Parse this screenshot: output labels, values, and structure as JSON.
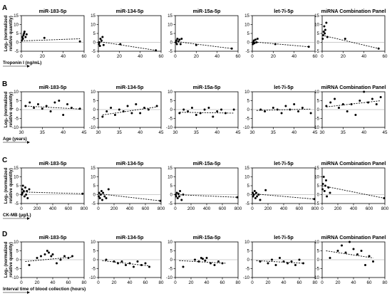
{
  "figure": {
    "y_axis_label_line1": "Log₂ (normalized",
    "y_axis_label_line2": "relative quantity)"
  },
  "panels": [
    {
      "letter": "A",
      "x_axis_label": "Troponin I (ng/mL)"
    },
    {
      "letter": "B",
      "x_axis_label": "Age (years)"
    },
    {
      "letter": "C",
      "x_axis_label": "CK-MB (μg/L)"
    },
    {
      "letter": "D",
      "x_axis_label": "Interval time of blood collection (hours)"
    }
  ],
  "chart_data": [
    {
      "panel": "A",
      "type": "scatter",
      "title": "miR-183-5p",
      "xlim": [
        0,
        60
      ],
      "ylim": [
        -5,
        15
      ],
      "xticks": [
        0,
        20,
        40,
        60
      ],
      "yticks": [
        -5,
        0,
        5,
        10,
        15
      ],
      "x": [
        0.5,
        1,
        1.5,
        2,
        2.5,
        3,
        4,
        5,
        22,
        56
      ],
      "y": [
        1,
        3,
        2,
        4,
        5,
        6,
        3,
        4.5,
        2.5,
        0.5
      ],
      "trend": [
        [
          0,
          0.8
        ],
        [
          56,
          2
        ]
      ]
    },
    {
      "panel": "A",
      "type": "scatter",
      "title": "miR-134-5p",
      "xlim": [
        0,
        60
      ],
      "ylim": [
        -5,
        15
      ],
      "xticks": [
        0,
        20,
        40,
        60
      ],
      "yticks": [
        -5,
        0,
        5,
        10,
        15
      ],
      "x": [
        0.5,
        1,
        1.5,
        2,
        3,
        4,
        5,
        21,
        55
      ],
      "y": [
        -1,
        0,
        -2,
        2,
        1,
        3,
        -1.5,
        -1,
        -4.5
      ],
      "trend": [
        [
          0,
          0.5
        ],
        [
          55,
          -4.5
        ]
      ]
    },
    {
      "panel": "A",
      "type": "scatter",
      "title": "miR-15a-5p",
      "xlim": [
        0,
        60
      ],
      "ylim": [
        -5,
        15
      ],
      "xticks": [
        0,
        20,
        40,
        60
      ],
      "yticks": [
        -5,
        0,
        5,
        10,
        15
      ],
      "x": [
        0.5,
        1,
        1.5,
        2,
        3,
        4,
        5,
        6,
        20,
        54
      ],
      "y": [
        0,
        1,
        -1,
        2,
        0.5,
        1.5,
        -1,
        2,
        -1.5,
        -3.5
      ],
      "trend": [
        [
          0,
          0.5
        ],
        [
          54,
          -3.5
        ]
      ]
    },
    {
      "panel": "A",
      "type": "scatter",
      "title": "let-7i-5p",
      "xlim": [
        0,
        60
      ],
      "ylim": [
        -5,
        15
      ],
      "xticks": [
        0,
        20,
        40,
        60
      ],
      "yticks": [
        -5,
        0,
        5,
        10,
        15
      ],
      "x": [
        0.5,
        1,
        1.5,
        2,
        3,
        4,
        5,
        22,
        54
      ],
      "y": [
        -1,
        0,
        1,
        -0.5,
        1.5,
        0,
        2,
        -1,
        -2.5
      ],
      "trend": [
        [
          0,
          0.3
        ],
        [
          54,
          -2.5
        ]
      ]
    },
    {
      "panel": "A",
      "type": "scatter",
      "title": "miRNA Combination Panel",
      "xlim": [
        0,
        60
      ],
      "ylim": [
        -5,
        15
      ],
      "xticks": [
        0,
        20,
        40,
        60
      ],
      "yticks": [
        -5,
        0,
        5,
        10,
        15
      ],
      "x": [
        0.5,
        1,
        1.5,
        2,
        2.5,
        3,
        4,
        5,
        22,
        54
      ],
      "y": [
        2,
        4,
        6,
        9,
        5,
        7,
        11,
        3,
        2,
        -3.5
      ],
      "trend": [
        [
          0,
          4
        ],
        [
          54,
          -3.5
        ]
      ]
    },
    {
      "panel": "B",
      "type": "scatter",
      "title": "miR-183-5p",
      "xlim": [
        30,
        45
      ],
      "ylim": [
        -10,
        10
      ],
      "xticks": [
        30,
        35,
        40,
        45
      ],
      "yticks": [
        -10,
        -5,
        0,
        5,
        10
      ],
      "x": [
        31,
        32,
        33,
        34,
        35,
        36,
        37,
        38,
        39,
        40,
        41,
        42,
        44
      ],
      "y": [
        2,
        4,
        1,
        3,
        0.5,
        2,
        -1,
        4,
        5,
        -3,
        3,
        1,
        0.5
      ],
      "trend": [
        [
          31,
          2
        ],
        [
          44,
          0.3
        ]
      ]
    },
    {
      "panel": "B",
      "type": "scatter",
      "title": "miR-134-5p",
      "xlim": [
        30,
        45
      ],
      "ylim": [
        -10,
        10
      ],
      "xticks": [
        30,
        35,
        40,
        45
      ],
      "yticks": [
        -10,
        -5,
        0,
        5,
        10
      ],
      "x": [
        31,
        32,
        33,
        34,
        35,
        36,
        37,
        38,
        39,
        40,
        41,
        42,
        44
      ],
      "y": [
        -4,
        -1,
        1,
        -3,
        0,
        -1,
        2,
        -2,
        3,
        -2,
        1,
        0,
        2
      ],
      "trend": [
        [
          31,
          -3
        ],
        [
          44,
          1.5
        ]
      ]
    },
    {
      "panel": "B",
      "type": "scatter",
      "title": "miR-15a-5p",
      "xlim": [
        30,
        45
      ],
      "ylim": [
        -10,
        10
      ],
      "xticks": [
        30,
        35,
        40,
        45
      ],
      "yticks": [
        -10,
        -5,
        0,
        5,
        10
      ],
      "x": [
        31,
        32,
        33,
        34,
        35,
        36,
        37,
        38,
        39,
        40,
        41,
        42,
        44
      ],
      "y": [
        -2,
        0,
        -1,
        1,
        -3,
        -2,
        0,
        1,
        -4,
        -1,
        0,
        -2,
        0
      ],
      "trend": [
        [
          31,
          -1.5
        ],
        [
          44,
          -2
        ]
      ]
    },
    {
      "panel": "B",
      "type": "scatter",
      "title": "let-7i-5p",
      "xlim": [
        30,
        45
      ],
      "ylim": [
        -10,
        10
      ],
      "xticks": [
        30,
        35,
        40,
        45
      ],
      "yticks": [
        -10,
        -5,
        0,
        5,
        10
      ],
      "x": [
        32,
        33,
        35,
        36,
        37,
        38,
        39,
        40,
        41,
        42,
        44
      ],
      "y": [
        0,
        -1,
        1,
        0,
        -2,
        2,
        0,
        3,
        -1,
        1,
        -2
      ],
      "trend": [
        [
          31,
          -0.5
        ],
        [
          44,
          0.3
        ]
      ]
    },
    {
      "panel": "B",
      "type": "scatter",
      "title": "miRNA Combination Panel",
      "xlim": [
        30,
        45
      ],
      "ylim": [
        -10,
        10
      ],
      "xticks": [
        30,
        35,
        40,
        45
      ],
      "yticks": [
        -10,
        -5,
        0,
        5,
        10
      ],
      "x": [
        31,
        32,
        33,
        34,
        35,
        36,
        37,
        38,
        39,
        40,
        41,
        42,
        43,
        44
      ],
      "y": [
        2,
        4,
        6,
        1,
        3,
        -1,
        3,
        -3,
        5,
        10,
        4,
        6,
        3,
        7
      ],
      "trend": [
        [
          31,
          1.5
        ],
        [
          44,
          5
        ]
      ]
    },
    {
      "panel": "C",
      "type": "scatter",
      "title": "miR-183-5p",
      "xlim": [
        0,
        800
      ],
      "ylim": [
        -5,
        15
      ],
      "xticks": [
        0,
        200,
        400,
        600,
        800
      ],
      "yticks": [
        -5,
        0,
        5,
        10,
        15
      ],
      "x": [
        5,
        10,
        15,
        20,
        30,
        40,
        50,
        60,
        70,
        80,
        100,
        780
      ],
      "y": [
        0,
        3,
        1,
        5,
        2,
        -1,
        4,
        0,
        2,
        -2,
        3,
        0.5
      ],
      "trend": [
        [
          0,
          1.5
        ],
        [
          780,
          0.5
        ]
      ]
    },
    {
      "panel": "C",
      "type": "scatter",
      "title": "miR-134-5p",
      "xlim": [
        0,
        800
      ],
      "ylim": [
        -5,
        15
      ],
      "xticks": [
        0,
        200,
        400,
        600,
        800
      ],
      "yticks": [
        -5,
        0,
        5,
        10,
        15
      ],
      "x": [
        5,
        10,
        20,
        30,
        40,
        50,
        60,
        80,
        100,
        130,
        790
      ],
      "y": [
        -1,
        1,
        -2,
        0,
        2,
        -3,
        1,
        -1,
        -2,
        3,
        -3.5
      ],
      "trend": [
        [
          0,
          0.5
        ],
        [
          790,
          -3.5
        ]
      ]
    },
    {
      "panel": "C",
      "type": "scatter",
      "title": "miR-15a-5p",
      "xlim": [
        0,
        800
      ],
      "ylim": [
        -5,
        15
      ],
      "xticks": [
        0,
        200,
        400,
        600,
        800
      ],
      "yticks": [
        -5,
        0,
        5,
        10,
        15
      ],
      "x": [
        5,
        10,
        20,
        30,
        40,
        50,
        60,
        80,
        100,
        790
      ],
      "y": [
        0,
        -1,
        1,
        -2,
        0.5,
        -1,
        2,
        -3,
        0,
        -1.5
      ],
      "trend": [
        [
          0,
          0
        ],
        [
          790,
          -1.5
        ]
      ]
    },
    {
      "panel": "C",
      "type": "scatter",
      "title": "let-7i-5p",
      "xlim": [
        0,
        800
      ],
      "ylim": [
        -5,
        15
      ],
      "xticks": [
        0,
        200,
        400,
        600,
        800
      ],
      "yticks": [
        -5,
        0,
        5,
        10,
        15
      ],
      "x": [
        5,
        10,
        20,
        30,
        40,
        50,
        60,
        80,
        100,
        170,
        790
      ],
      "y": [
        1,
        -1,
        0,
        2,
        -2,
        1,
        -1,
        0,
        -3,
        2.5,
        -2.5
      ],
      "trend": [
        [
          0,
          0.5
        ],
        [
          790,
          -2.5
        ]
      ]
    },
    {
      "panel": "C",
      "type": "scatter",
      "title": "miRNA Combination Panel",
      "xlim": [
        0,
        800
      ],
      "ylim": [
        -5,
        15
      ],
      "xticks": [
        0,
        200,
        400,
        600,
        800
      ],
      "yticks": [
        -5,
        0,
        5,
        10,
        15
      ],
      "x": [
        5,
        10,
        20,
        30,
        40,
        50,
        60,
        80,
        100,
        790
      ],
      "y": [
        3,
        6,
        10,
        2,
        5,
        8,
        -1,
        4,
        1,
        -2
      ],
      "trend": [
        [
          0,
          5
        ],
        [
          790,
          -2
        ]
      ]
    },
    {
      "panel": "D",
      "type": "scatter",
      "title": "miR-183-5p",
      "xlim": [
        0,
        80
      ],
      "ylim": [
        -10,
        10
      ],
      "xticks": [
        0,
        20,
        40,
        60,
        80
      ],
      "yticks": [
        -10,
        -5,
        0,
        5,
        10
      ],
      "x": [
        10,
        20,
        25,
        30,
        33,
        35,
        38,
        40,
        45,
        50,
        55,
        60,
        65
      ],
      "y": [
        -3,
        1,
        2,
        3,
        5,
        4,
        2,
        3,
        -2,
        0,
        2,
        1,
        2
      ],
      "trend": [
        [
          5,
          -1
        ],
        [
          65,
          1.5
        ]
      ]
    },
    {
      "panel": "D",
      "type": "scatter",
      "title": "miR-134-5p",
      "xlim": [
        0,
        80
      ],
      "ylim": [
        -10,
        10
      ],
      "xticks": [
        0,
        20,
        40,
        60,
        80
      ],
      "yticks": [
        -10,
        -5,
        0,
        5,
        10
      ],
      "x": [
        10,
        20,
        25,
        30,
        35,
        40,
        45,
        50,
        55,
        60,
        65
      ],
      "y": [
        0,
        -1,
        -2,
        -1,
        -3,
        -2,
        -4,
        -1,
        -3,
        -2,
        -4
      ],
      "trend": [
        [
          5,
          -0.5
        ],
        [
          65,
          -3.5
        ]
      ]
    },
    {
      "panel": "D",
      "type": "scatter",
      "title": "miR-15a-5p",
      "xlim": [
        0,
        80
      ],
      "ylim": [
        -10,
        10
      ],
      "xticks": [
        0,
        20,
        40,
        60,
        80
      ],
      "yticks": [
        -10,
        -5,
        0,
        5,
        10
      ],
      "x": [
        10,
        25,
        30,
        33,
        35,
        38,
        40,
        45,
        50,
        55,
        60
      ],
      "y": [
        -4,
        0,
        -1,
        1,
        0.5,
        -0.5,
        1,
        -2,
        -3,
        -1,
        -2
      ],
      "trend": [
        [
          5,
          -0.5
        ],
        [
          65,
          -2
        ]
      ]
    },
    {
      "panel": "D",
      "type": "scatter",
      "title": "let-7i-5p",
      "xlim": [
        0,
        80
      ],
      "ylim": [
        -10,
        10
      ],
      "xticks": [
        0,
        20,
        40,
        60,
        80
      ],
      "yticks": [
        -10,
        -5,
        0,
        5,
        10
      ],
      "x": [
        10,
        20,
        25,
        30,
        35,
        40,
        45,
        50,
        55,
        60,
        65
      ],
      "y": [
        -1,
        -2,
        0,
        -3,
        1,
        -1,
        -2,
        -1,
        -3,
        0,
        -2
      ],
      "trend": [
        [
          5,
          -0.5
        ],
        [
          65,
          -2
        ]
      ]
    },
    {
      "panel": "D",
      "type": "scatter",
      "title": "miRNA Combination Panel",
      "xlim": [
        0,
        80
      ],
      "ylim": [
        -10,
        10
      ],
      "xticks": [
        0,
        20,
        40,
        60,
        80
      ],
      "yticks": [
        -10,
        -5,
        0,
        5,
        10
      ],
      "x": [
        10,
        20,
        25,
        30,
        35,
        40,
        45,
        50,
        55,
        60,
        65
      ],
      "y": [
        1,
        5,
        8,
        4,
        10,
        6,
        3,
        5,
        -3,
        2,
        -1
      ],
      "trend": [
        [
          5,
          5
        ],
        [
          65,
          1
        ]
      ]
    }
  ]
}
